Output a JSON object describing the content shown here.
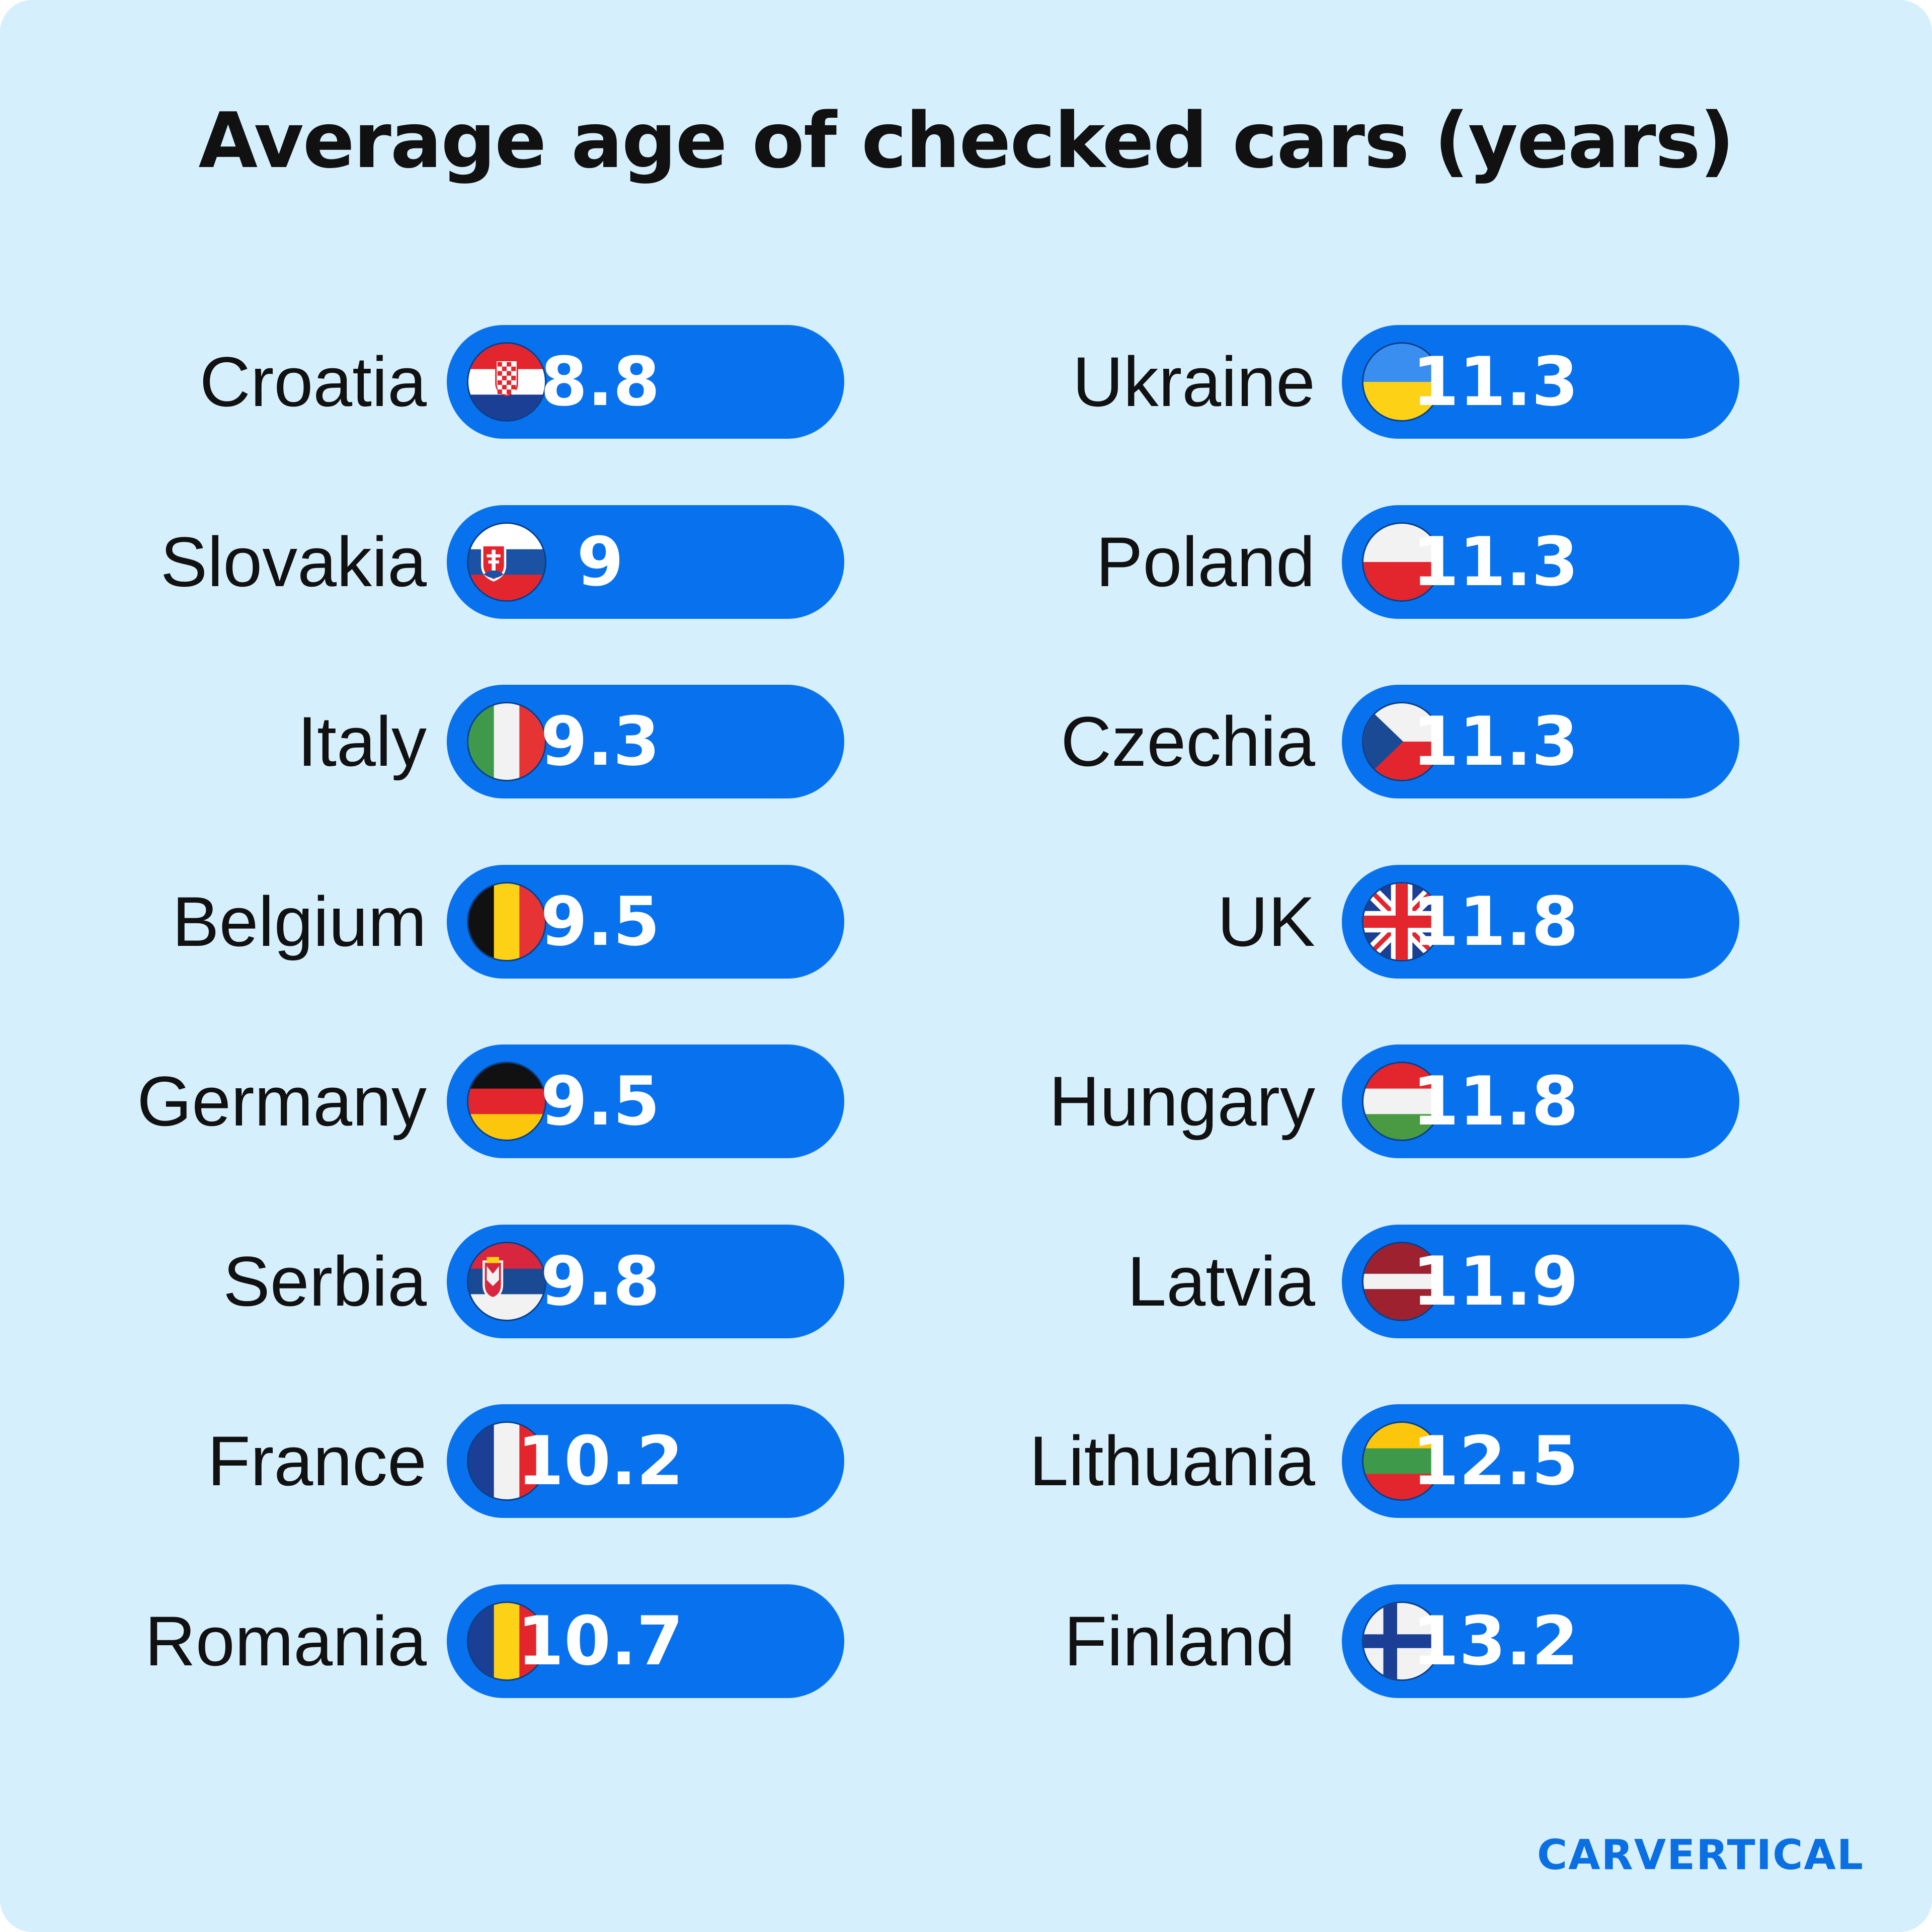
{
  "chart_data": {
    "type": "table",
    "title": "Average age of checked cars (years)",
    "unit": "years",
    "columns": [
      [
        {
          "country": "Croatia",
          "flag": "croatia-flag-icon",
          "value": "8.8"
        },
        {
          "country": "Slovakia",
          "flag": "slovakia-flag-icon",
          "value": "9"
        },
        {
          "country": "Italy",
          "flag": "italy-flag-icon",
          "value": "9.3"
        },
        {
          "country": "Belgium",
          "flag": "belgium-flag-icon",
          "value": "9.5"
        },
        {
          "country": "Germany",
          "flag": "germany-flag-icon",
          "value": "9.5"
        },
        {
          "country": "Serbia",
          "flag": "serbia-flag-icon",
          "value": "9.8"
        },
        {
          "country": "France",
          "flag": "france-flag-icon",
          "value": "10.2"
        },
        {
          "country": "Romania",
          "flag": "romania-flag-icon",
          "value": "10.7"
        }
      ],
      [
        {
          "country": "Ukraine",
          "flag": "ukraine-flag-icon",
          "value": "11.3"
        },
        {
          "country": "Poland",
          "flag": "poland-flag-icon",
          "value": "11.3"
        },
        {
          "country": "Czechia",
          "flag": "czechia-flag-icon",
          "value": "11.3"
        },
        {
          "country": "UK",
          "flag": "uk-flag-icon",
          "value": "11.8"
        },
        {
          "country": "Hungary",
          "flag": "hungary-flag-icon",
          "value": "11.8"
        },
        {
          "country": "Latvia",
          "flag": "latvia-flag-icon",
          "value": "11.9"
        },
        {
          "country": "Lithuania",
          "flag": "lithuania-flag-icon",
          "value": "12.5"
        },
        {
          "country": "Finland",
          "flag": "finland-flag-icon",
          "value": "13.2"
        }
      ]
    ]
  },
  "brand": {
    "logo_text": "CARVERTICAL"
  },
  "colors": {
    "background": "#d6effd",
    "pill": "#0872ee",
    "logo": "#0a6fe3"
  }
}
